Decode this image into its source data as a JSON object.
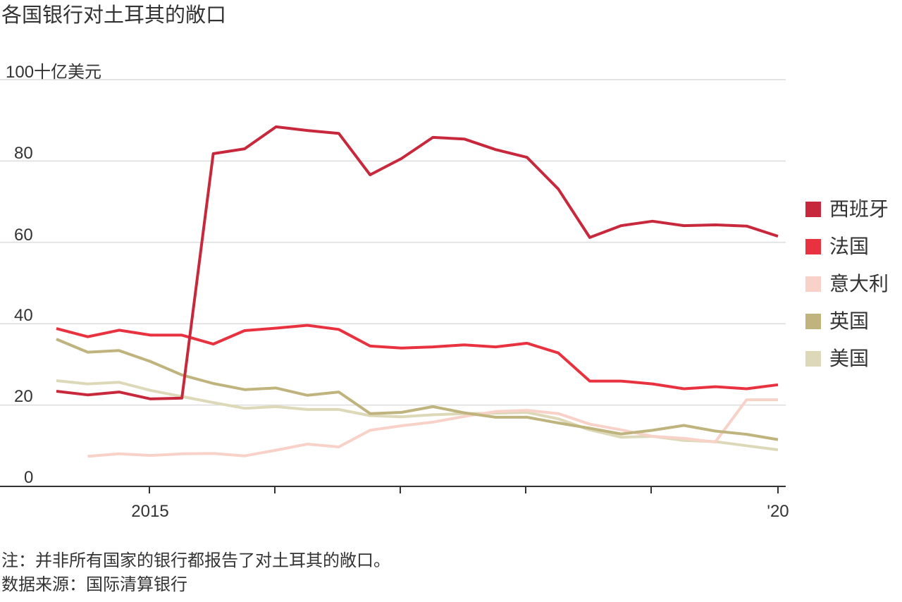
{
  "title": "各国银行对土耳其的敞口",
  "y_axis": {
    "unit_label": "十亿美元",
    "ticks": [
      "100",
      "80",
      "60",
      "40",
      "20",
      "0"
    ]
  },
  "x_axis": {
    "labels": [
      "2015",
      "'20"
    ]
  },
  "legend": [
    {
      "label": "西班牙",
      "color": "#c8283c"
    },
    {
      "label": "法国",
      "color": "#e8323f"
    },
    {
      "label": "意大利",
      "color": "#f8d2c8"
    },
    {
      "label": "英国",
      "color": "#bfb47e"
    },
    {
      "label": "美国",
      "color": "#ddd9b8"
    }
  ],
  "footer": {
    "note": "注：并非所有国家的银行都报告了对土耳其的敞口。",
    "source": "数据来源：国际清算银行"
  },
  "chart_data": {
    "type": "line",
    "title": "各国银行对土耳其的敞口",
    "xlabel": "",
    "ylabel": "十亿美元",
    "ylim": [
      0,
      100
    ],
    "yticks": [
      0,
      20,
      40,
      60,
      80,
      100
    ],
    "xticks": [
      "2015",
      "2016",
      "2017",
      "2018",
      "2019",
      "'20"
    ],
    "x": [
      "2014Q1",
      "2014Q2",
      "2014Q3",
      "2014Q4",
      "2015Q1",
      "2015Q2",
      "2015Q3",
      "2015Q4",
      "2016Q1",
      "2016Q2",
      "2016Q3",
      "2016Q4",
      "2017Q1",
      "2017Q2",
      "2017Q3",
      "2017Q4",
      "2018Q1",
      "2018Q2",
      "2018Q3",
      "2018Q4",
      "2019Q1",
      "2019Q2",
      "2019Q3",
      "2019Q4"
    ],
    "grid": true,
    "legend_position": "right",
    "series": [
      {
        "name": "西班牙",
        "color": "#c8283c",
        "values": [
          23.4,
          22.5,
          23.2,
          21.5,
          21.7,
          81.8,
          83.0,
          88.4,
          87.5,
          86.8,
          76.6,
          80.6,
          85.8,
          85.4,
          82.8,
          80.9,
          73.1,
          61.2,
          64.1,
          65.2,
          64.1,
          64.3,
          64.0,
          61.5
        ]
      },
      {
        "name": "法国",
        "color": "#e8323f",
        "values": [
          38.8,
          36.8,
          38.4,
          37.2,
          37.2,
          35.0,
          38.3,
          38.9,
          39.6,
          38.6,
          34.5,
          34.0,
          34.3,
          34.8,
          34.3,
          35.2,
          32.8,
          25.9,
          25.9,
          25.2,
          24.0,
          24.5,
          24.0,
          25.0
        ]
      },
      {
        "name": "意大利",
        "color": "#f8d2c8",
        "values": [
          null,
          7.4,
          8.0,
          7.6,
          8.0,
          8.1,
          7.5,
          8.9,
          10.4,
          9.7,
          13.8,
          14.9,
          15.8,
          17.2,
          18.4,
          18.7,
          17.9,
          15.3,
          13.9,
          12.3,
          11.8,
          10.9,
          21.3,
          21.3
        ]
      },
      {
        "name": "英国",
        "color": "#bfb47e",
        "values": [
          36.2,
          33.0,
          33.4,
          30.7,
          27.4,
          25.3,
          23.8,
          24.2,
          22.4,
          23.2,
          17.9,
          18.2,
          19.6,
          18.1,
          17.0,
          17.0,
          15.6,
          14.3,
          12.9,
          13.8,
          15.0,
          13.6,
          12.8,
          11.5
        ]
      },
      {
        "name": "美国",
        "color": "#ddd9b8",
        "values": [
          26.0,
          25.2,
          25.6,
          23.6,
          22.1,
          20.6,
          19.2,
          19.6,
          18.9,
          18.9,
          17.4,
          17.1,
          17.6,
          17.9,
          18.0,
          18.2,
          16.6,
          13.9,
          12.1,
          12.3,
          11.3,
          11.0,
          10.0,
          9.0
        ]
      }
    ]
  }
}
